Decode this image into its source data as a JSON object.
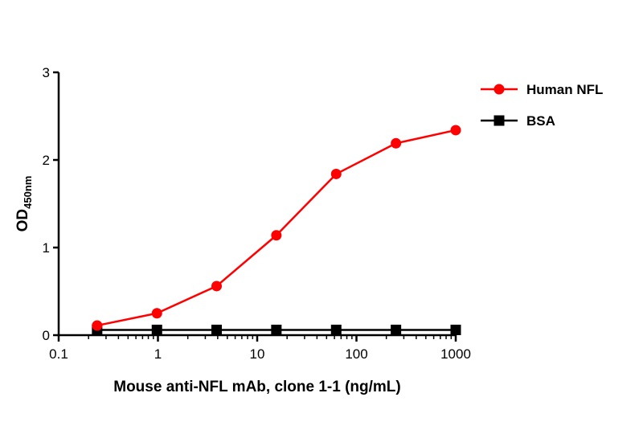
{
  "chart_data": {
    "type": "line",
    "xscale": "log",
    "xlabel": "Mouse anti-NFL mAb, clone 1-1 (ng/mL)",
    "ylabel_main": "OD",
    "ylabel_sub": "450nm",
    "xlim": [
      0.1,
      1000
    ],
    "ylim": [
      0,
      3
    ],
    "xticks": [
      0.1,
      1,
      10,
      100,
      1000
    ],
    "xtick_labels": [
      "0.1",
      "1",
      "10",
      "100",
      "1000"
    ],
    "yticks": [
      0,
      1,
      2,
      3
    ],
    "ytick_labels": [
      "0",
      "1",
      "2",
      "3"
    ],
    "grid": false,
    "legend_position": "top-right",
    "series": [
      {
        "name": "Human NFL",
        "color": "#ff0000",
        "marker": "circle",
        "x": [
          0.244,
          0.977,
          3.9,
          15.6,
          62.5,
          250,
          1000
        ],
        "y": [
          0.11,
          0.25,
          0.56,
          1.14,
          1.84,
          2.19,
          2.34
        ]
      },
      {
        "name": "BSA",
        "color": "#000000",
        "marker": "square",
        "x": [
          0.244,
          0.977,
          3.9,
          15.6,
          62.5,
          250,
          1000
        ],
        "y": [
          0.06,
          0.06,
          0.06,
          0.06,
          0.06,
          0.06,
          0.06
        ]
      }
    ]
  }
}
